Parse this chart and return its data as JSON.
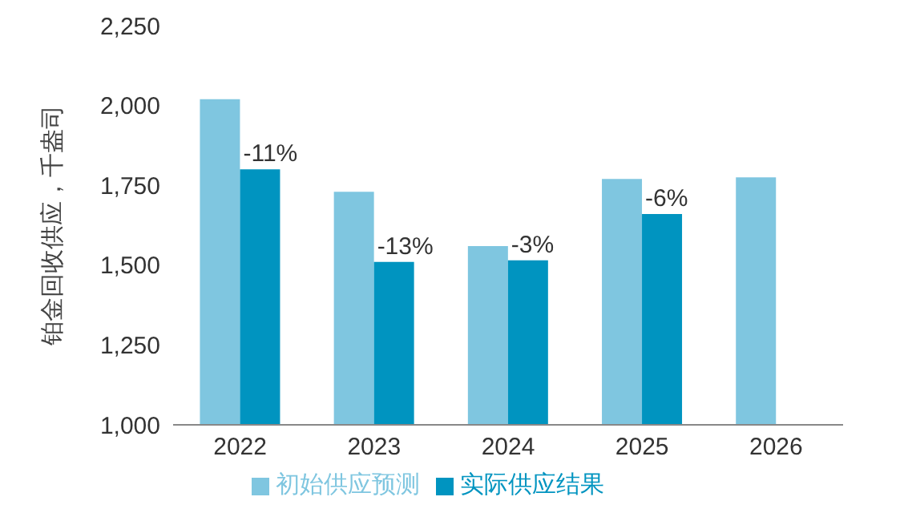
{
  "chart_data": {
    "type": "bar",
    "ylabel": "铂金回收供应，千盎司",
    "categories": [
      "2022",
      "2023",
      "2024",
      "2025",
      "2026"
    ],
    "series": [
      {
        "name": "初始供应预测",
        "color": "#7fc6e0",
        "values": [
          2020,
          1730,
          1560,
          1770,
          1775
        ]
      },
      {
        "name": "实际供应结果",
        "color": "#0094c0",
        "values": [
          1800,
          1510,
          1515,
          1660,
          null
        ]
      }
    ],
    "annotations": [
      {
        "text": "-11%",
        "x": "2022",
        "y": 1800
      },
      {
        "text": "-13%",
        "x": "2023",
        "y": 1510
      },
      {
        "text": "-3%",
        "x": "2024",
        "y": 1515
      },
      {
        "text": "-6%",
        "x": "2025",
        "y": 1660
      }
    ],
    "ylim": [
      1000,
      2250
    ],
    "yticks": [
      {
        "value": 1000,
        "label": "1,000"
      },
      {
        "value": 1250,
        "label": "1,250"
      },
      {
        "value": 1500,
        "label": "1,500"
      },
      {
        "value": 1750,
        "label": "1,750"
      },
      {
        "value": 2000,
        "label": "2,000"
      },
      {
        "value": 2250,
        "label": "2,250"
      }
    ],
    "grid": false,
    "legend": "bottom"
  }
}
